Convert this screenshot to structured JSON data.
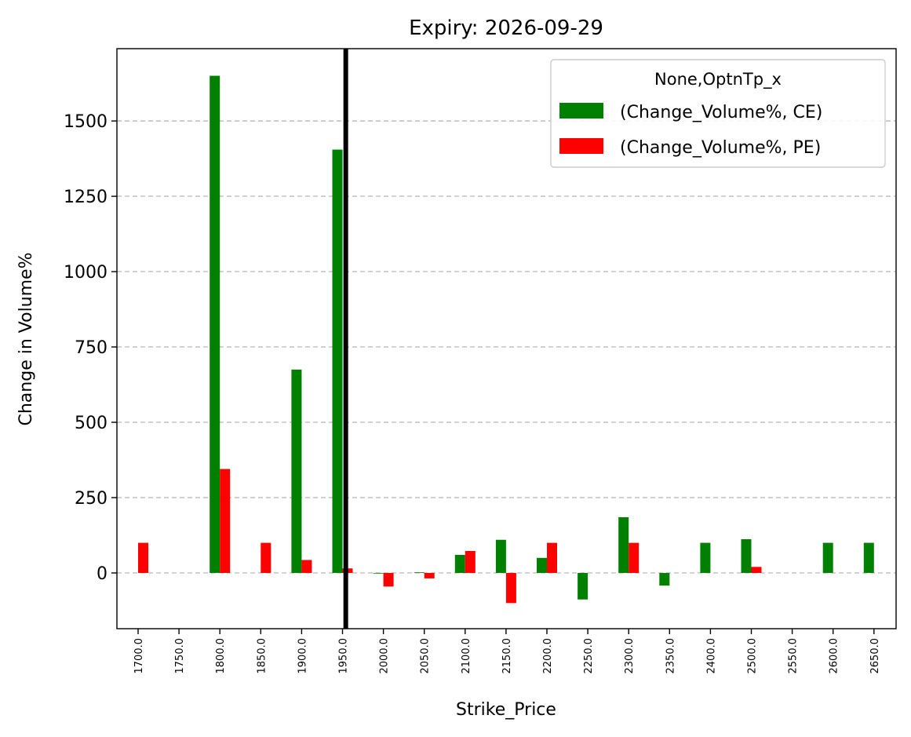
{
  "chart_data": {
    "type": "bar",
    "title": "Expiry: 2026-09-29",
    "xlabel": "Strike_Price",
    "ylabel": "Change in Volume%",
    "categories": [
      "1700.0",
      "1750.0",
      "1800.0",
      "1850.0",
      "1900.0",
      "1950.0",
      "2000.0",
      "2050.0",
      "2100.0",
      "2150.0",
      "2200.0",
      "2250.0",
      "2300.0",
      "2350.0",
      "2400.0",
      "2500.0",
      "2550.0",
      "2600.0",
      "2650.0"
    ],
    "series": [
      {
        "name": "(Change_Volume%, CE)",
        "color": "#008000",
        "values": [
          0,
          0,
          1650,
          0,
          675,
          1405,
          -2,
          2,
          60,
          110,
          50,
          -88,
          185,
          -42,
          100,
          112,
          0,
          100,
          100
        ]
      },
      {
        "name": "(Change_Volume%, PE)",
        "color": "#ff0000",
        "values": [
          100,
          0,
          345,
          100,
          43,
          15,
          -45,
          -18,
          73,
          -100,
          100,
          0,
          100,
          0,
          0,
          20,
          0,
          0,
          0
        ]
      }
    ],
    "ylim": [
      -185,
      1740
    ],
    "yticks": [
      0,
      250,
      500,
      750,
      1000,
      1250,
      1500
    ],
    "legend": {
      "title": "None,OptnTp_x",
      "position": "top-right"
    },
    "reference_line": {
      "category": "1950.0",
      "offset": 0.08,
      "color": "#000000"
    },
    "grid": "y-dashed"
  }
}
